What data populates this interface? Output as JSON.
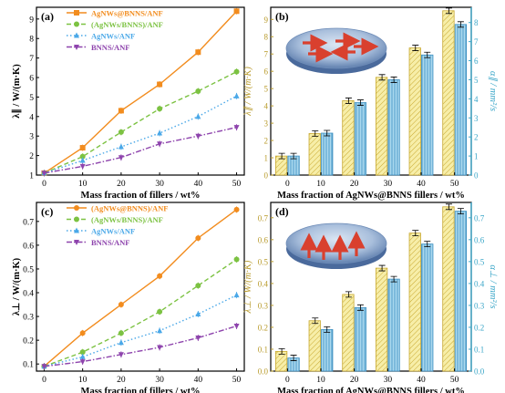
{
  "colors": {
    "agnws_bnns_anf": "#f28c1e",
    "agnws_bnns_anf_green": "#7cc242",
    "agnws_anf": "#4aa8e8",
    "bnns_anf": "#8e44ad",
    "bar_yellow_fill": "#f7eea8",
    "bar_yellow_edge": "#c8a830",
    "bar_blue_fill": "#a9d8ee",
    "bar_blue_edge": "#3a8ec0",
    "secondary_axis": "#3aa6c8",
    "primary_axis_d": "#b89a2a"
  },
  "chart_data": [
    {
      "panel_label": "(a)",
      "type": "line",
      "ylabel": "λ∥ / W/(m·K)",
      "xlabel": "Mass fraction of fillers / wt%",
      "x": [
        0,
        10,
        20,
        30,
        40,
        50
      ],
      "xticks": [
        "0",
        "10",
        "20",
        "30",
        "40",
        "50"
      ],
      "xlim": [
        -2,
        52
      ],
      "ylim": [
        1,
        9.6
      ],
      "yticks": [
        "1",
        "2",
        "3",
        "4",
        "5",
        "6",
        "7",
        "8",
        "9"
      ],
      "legend_position": "top-left",
      "series": [
        {
          "name": "AgNWs@BNNS/ANF",
          "values": [
            1.1,
            2.4,
            4.3,
            5.65,
            7.3,
            9.4
          ],
          "color": "#f28c1e",
          "marker": "square",
          "dash": "solid"
        },
        {
          "name": "(AgNWs/BNNS)/ANF",
          "values": [
            1.1,
            1.95,
            3.2,
            4.4,
            5.3,
            6.3
          ],
          "color": "#7cc242",
          "marker": "circle",
          "dash": "dash"
        },
        {
          "name": "AgNWs/ANF",
          "values": [
            1.1,
            1.75,
            2.45,
            3.15,
            4.0,
            5.05
          ],
          "color": "#4aa8e8",
          "marker": "triangle-up",
          "dash": "dot"
        },
        {
          "name": "BNNS/ANF",
          "values": [
            1.1,
            1.45,
            1.9,
            2.6,
            3.0,
            3.45
          ],
          "color": "#8e44ad",
          "marker": "triangle-down",
          "dash": "dashdot"
        }
      ]
    },
    {
      "panel_label": "(b)",
      "type": "bar",
      "ylabel": "λ∥ / W/(m·K)",
      "y2label": "α∥ / mm²/s",
      "xlabel": "Mass fraction of AgNWs@BNNS fillers / wt%",
      "categories": [
        "0",
        "10",
        "20",
        "30",
        "40",
        "50"
      ],
      "ylim": [
        0,
        9.7
      ],
      "yticks": [
        "0",
        "1",
        "2",
        "3",
        "4",
        "5",
        "6",
        "7",
        "8",
        "9"
      ],
      "y2lim": [
        0,
        8.8
      ],
      "y2ticks": [
        "0",
        "1",
        "2",
        "3",
        "4",
        "5",
        "6",
        "7",
        "8"
      ],
      "series": [
        {
          "axis": "left",
          "values": [
            1.1,
            2.4,
            4.3,
            5.65,
            7.35,
            9.5
          ]
        },
        {
          "axis": "right",
          "values": [
            1.0,
            2.2,
            3.8,
            5.0,
            6.3,
            7.9
          ]
        }
      ]
    },
    {
      "panel_label": "(c)",
      "type": "line",
      "ylabel": "λ⊥ / W/(m·K)",
      "xlabel": "Mass fraction of fillers / wt%",
      "x": [
        0,
        10,
        20,
        30,
        40,
        50
      ],
      "xticks": [
        "0",
        "10",
        "20",
        "30",
        "40",
        "50"
      ],
      "xlim": [
        -2,
        52
      ],
      "ylim": [
        0.07,
        0.78
      ],
      "yticks": [
        "0.1",
        "0.2",
        "0.3",
        "0.4",
        "0.5",
        "0.6",
        "0.7"
      ],
      "legend_position": "top-left",
      "series": [
        {
          "name": "(AgNWs@BNNS)/ANF",
          "values": [
            0.09,
            0.23,
            0.35,
            0.47,
            0.63,
            0.75
          ],
          "color": "#f28c1e",
          "marker": "circle",
          "dash": "solid"
        },
        {
          "name": "(AgNWs/BNNS)/ANF",
          "values": [
            0.09,
            0.15,
            0.23,
            0.32,
            0.43,
            0.54
          ],
          "color": "#7cc242",
          "marker": "circle",
          "dash": "dash"
        },
        {
          "name": "AgNWs/ANF",
          "values": [
            0.09,
            0.13,
            0.19,
            0.24,
            0.31,
            0.39
          ],
          "color": "#4aa8e8",
          "marker": "triangle-up",
          "dash": "dot"
        },
        {
          "name": "BNNS/ANF",
          "values": [
            0.09,
            0.11,
            0.14,
            0.17,
            0.21,
            0.26
          ],
          "color": "#8e44ad",
          "marker": "triangle-down",
          "dash": "dashdot"
        }
      ]
    },
    {
      "panel_label": "(d)",
      "type": "bar",
      "ylabel": "λ⊥ / W/(m·K)",
      "y2label": "α⊥ / mm²/s",
      "xlabel": "Mass fraction of AgNWs@BNNS fillers / wt%",
      "categories": [
        "0",
        "10",
        "20",
        "30",
        "40",
        "50"
      ],
      "ylim": [
        0,
        0.77
      ],
      "yticks": [
        "0.0",
        "0.1",
        "0.2",
        "0.3",
        "0.4",
        "0.5",
        "0.6",
        "0.7"
      ],
      "y2lim": [
        0,
        0.77
      ],
      "y2ticks": [
        "0.0",
        "0.1",
        "0.2",
        "0.3",
        "0.4",
        "0.5",
        "0.6",
        "0.7"
      ],
      "series": [
        {
          "axis": "left",
          "values": [
            0.09,
            0.23,
            0.35,
            0.47,
            0.63,
            0.75
          ]
        },
        {
          "axis": "right",
          "values": [
            0.06,
            0.19,
            0.29,
            0.42,
            0.58,
            0.73
          ]
        }
      ]
    }
  ]
}
